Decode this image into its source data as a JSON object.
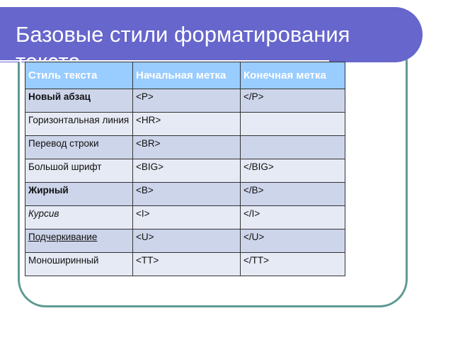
{
  "slide": {
    "title": "Базовые стили форматирования текста",
    "colors": {
      "banner": "#6666cc",
      "frame": "#5f9a94",
      "header": "#99ccff",
      "row_dark": "#cdd5ea",
      "row_light": "#e6eaf5"
    }
  },
  "table": {
    "headers": [
      "Стиль текста",
      "Начальная метка",
      "Конечная метка"
    ],
    "rows": [
      {
        "style": "Новый абзац",
        "start": "<P>",
        "end": "</P>",
        "format": "bold"
      },
      {
        "style": "Горизонтальная линия",
        "start": "<HR>",
        "end": "",
        "format": "normal"
      },
      {
        "style": "Перевод строки",
        "start": "<BR>",
        "end": "",
        "format": "normal"
      },
      {
        "style": "Большой шрифт",
        "start": "<BIG>",
        "end": "</BIG>",
        "format": "normal"
      },
      {
        "style": "Жирный",
        "start": "<B>",
        "end": "</B>",
        "format": "bold"
      },
      {
        "style": "Курсив",
        "start": "<I>",
        "end": "</I>",
        "format": "italic"
      },
      {
        "style": "Подчеркивание",
        "start": "<U>",
        "end": "</U>",
        "format": "underline"
      },
      {
        "style": "Моноширинный",
        "start": "<TT>",
        "end": "</TT>",
        "format": "normal"
      }
    ]
  }
}
